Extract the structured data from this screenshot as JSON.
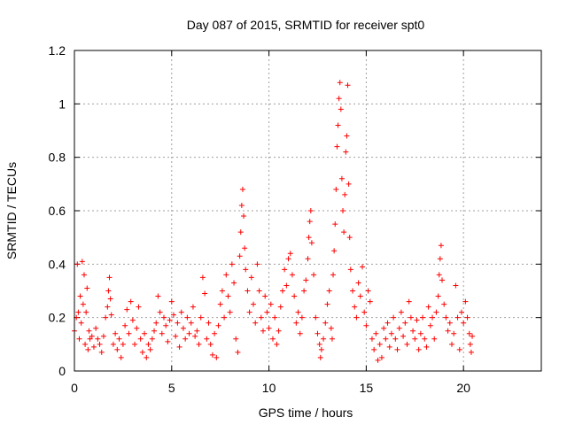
{
  "chart_data": {
    "type": "scatter",
    "title": "Day 087 of 2015, SRMTID for receiver spt0",
    "xlabel": "GPS time / hours",
    "ylabel": "SRMTID / TECUs",
    "xlim": [
      0,
      24
    ],
    "ylim": [
      0,
      1.2
    ],
    "xticks": [
      0,
      5,
      10,
      15,
      20
    ],
    "xtick_labels": [
      "0",
      "5",
      "10",
      "15",
      "20"
    ],
    "yticks": [
      0,
      0.2,
      0.4,
      0.6,
      0.8,
      1.0,
      1.2
    ],
    "ytick_labels": [
      "0",
      "0.2",
      "0.4",
      "0.6",
      "0.8",
      "1",
      "1.2"
    ],
    "grid": true,
    "marker": "+",
    "color": "#ff0000",
    "series": [
      {
        "name": "spt0",
        "points": [
          [
            0.0,
            0.15
          ],
          [
            0.1,
            0.2
          ],
          [
            0.15,
            0.4
          ],
          [
            0.2,
            0.22
          ],
          [
            0.25,
            0.12
          ],
          [
            0.3,
            0.28
          ],
          [
            0.35,
            0.18
          ],
          [
            0.4,
            0.41
          ],
          [
            0.45,
            0.25
          ],
          [
            0.5,
            0.36
          ],
          [
            0.55,
            0.1
          ],
          [
            0.6,
            0.22
          ],
          [
            0.65,
            0.31
          ],
          [
            0.7,
            0.08
          ],
          [
            0.75,
            0.15
          ],
          [
            0.8,
            0.12
          ],
          [
            0.9,
            0.13
          ],
          [
            1.0,
            0.09
          ],
          [
            1.1,
            0.16
          ],
          [
            1.2,
            0.12
          ],
          [
            1.3,
            0.1
          ],
          [
            1.4,
            0.07
          ],
          [
            1.5,
            0.13
          ],
          [
            1.6,
            0.2
          ],
          [
            1.7,
            0.24
          ],
          [
            1.75,
            0.3
          ],
          [
            1.8,
            0.35
          ],
          [
            1.85,
            0.27
          ],
          [
            1.9,
            0.21
          ],
          [
            2.0,
            0.1
          ],
          [
            2.1,
            0.14
          ],
          [
            2.2,
            0.08
          ],
          [
            2.3,
            0.12
          ],
          [
            2.4,
            0.05
          ],
          [
            2.5,
            0.1
          ],
          [
            2.6,
            0.17
          ],
          [
            2.7,
            0.23
          ],
          [
            2.8,
            0.14
          ],
          [
            2.9,
            0.26
          ],
          [
            3.0,
            0.19
          ],
          [
            3.1,
            0.1
          ],
          [
            3.2,
            0.16
          ],
          [
            3.3,
            0.24
          ],
          [
            3.4,
            0.12
          ],
          [
            3.5,
            0.07
          ],
          [
            3.6,
            0.14
          ],
          [
            3.7,
            0.05
          ],
          [
            3.8,
            0.1
          ],
          [
            3.9,
            0.08
          ],
          [
            4.0,
            0.12
          ],
          [
            4.1,
            0.15
          ],
          [
            4.2,
            0.18
          ],
          [
            4.3,
            0.28
          ],
          [
            4.4,
            0.22
          ],
          [
            4.5,
            0.14
          ],
          [
            4.6,
            0.2
          ],
          [
            4.7,
            0.17
          ],
          [
            4.8,
            0.11
          ],
          [
            4.9,
            0.19
          ],
          [
            5.0,
            0.26
          ],
          [
            5.1,
            0.21
          ],
          [
            5.2,
            0.13
          ],
          [
            5.3,
            0.18
          ],
          [
            5.4,
            0.09
          ],
          [
            5.5,
            0.22
          ],
          [
            5.6,
            0.16
          ],
          [
            5.7,
            0.12
          ],
          [
            5.8,
            0.2
          ],
          [
            5.9,
            0.14
          ],
          [
            6.0,
            0.18
          ],
          [
            6.1,
            0.24
          ],
          [
            6.2,
            0.13
          ],
          [
            6.3,
            0.15
          ],
          [
            6.4,
            0.1
          ],
          [
            6.5,
            0.2
          ],
          [
            6.6,
            0.35
          ],
          [
            6.7,
            0.29
          ],
          [
            6.8,
            0.12
          ],
          [
            6.9,
            0.18
          ],
          [
            7.0,
            0.1
          ],
          [
            7.1,
            0.06
          ],
          [
            7.2,
            0.14
          ],
          [
            7.3,
            0.05
          ],
          [
            7.4,
            0.17
          ],
          [
            7.5,
            0.25
          ],
          [
            7.6,
            0.3
          ],
          [
            7.7,
            0.2
          ],
          [
            7.8,
            0.36
          ],
          [
            7.9,
            0.28
          ],
          [
            8.0,
            0.22
          ],
          [
            8.1,
            0.4
          ],
          [
            8.2,
            0.33
          ],
          [
            8.3,
            0.12
          ],
          [
            8.4,
            0.07
          ],
          [
            8.5,
            0.43
          ],
          [
            8.55,
            0.52
          ],
          [
            8.6,
            0.62
          ],
          [
            8.65,
            0.68
          ],
          [
            8.7,
            0.58
          ],
          [
            8.75,
            0.46
          ],
          [
            8.8,
            0.38
          ],
          [
            8.9,
            0.3
          ],
          [
            9.0,
            0.22
          ],
          [
            9.1,
            0.35
          ],
          [
            9.2,
            0.25
          ],
          [
            9.3,
            0.18
          ],
          [
            9.4,
            0.4
          ],
          [
            9.5,
            0.3
          ],
          [
            9.6,
            0.2
          ],
          [
            9.7,
            0.15
          ],
          [
            9.8,
            0.28
          ],
          [
            9.9,
            0.22
          ],
          [
            10.0,
            0.16
          ],
          [
            10.1,
            0.25
          ],
          [
            10.2,
            0.12
          ],
          [
            10.3,
            0.2
          ],
          [
            10.4,
            0.1
          ],
          [
            10.5,
            0.15
          ],
          [
            10.6,
            0.24
          ],
          [
            10.7,
            0.3
          ],
          [
            10.8,
            0.38
          ],
          [
            10.9,
            0.32
          ],
          [
            11.0,
            0.42
          ],
          [
            11.1,
            0.44
          ],
          [
            11.2,
            0.36
          ],
          [
            11.3,
            0.28
          ],
          [
            11.4,
            0.18
          ],
          [
            11.5,
            0.22
          ],
          [
            11.6,
            0.14
          ],
          [
            11.7,
            0.2
          ],
          [
            11.8,
            0.3
          ],
          [
            11.9,
            0.34
          ],
          [
            12.0,
            0.42
          ],
          [
            12.05,
            0.5
          ],
          [
            12.1,
            0.56
          ],
          [
            12.15,
            0.6
          ],
          [
            12.2,
            0.48
          ],
          [
            12.3,
            0.36
          ],
          [
            12.4,
            0.2
          ],
          [
            12.5,
            0.14
          ],
          [
            12.6,
            0.1
          ],
          [
            12.65,
            0.05
          ],
          [
            12.7,
            0.08
          ],
          [
            12.8,
            0.12
          ],
          [
            12.9,
            0.18
          ],
          [
            13.0,
            0.25
          ],
          [
            13.1,
            0.3
          ],
          [
            13.2,
            0.16
          ],
          [
            13.25,
            0.12
          ],
          [
            13.3,
            0.36
          ],
          [
            13.35,
            0.45
          ],
          [
            13.4,
            0.55
          ],
          [
            13.45,
            0.68
          ],
          [
            13.5,
            0.84
          ],
          [
            13.55,
            0.92
          ],
          [
            13.6,
            1.02
          ],
          [
            13.65,
            1.08
          ],
          [
            13.7,
            0.98
          ],
          [
            13.75,
            0.72
          ],
          [
            13.8,
            0.6
          ],
          [
            13.85,
            0.52
          ],
          [
            13.9,
            0.66
          ],
          [
            13.95,
            0.82
          ],
          [
            14.0,
            0.88
          ],
          [
            14.05,
            1.07
          ],
          [
            14.1,
            0.7
          ],
          [
            14.15,
            0.5
          ],
          [
            14.2,
            0.38
          ],
          [
            14.3,
            0.3
          ],
          [
            14.4,
            0.24
          ],
          [
            14.5,
            0.2
          ],
          [
            14.6,
            0.33
          ],
          [
            14.7,
            0.28
          ],
          [
            14.8,
            0.39
          ],
          [
            14.9,
            0.22
          ],
          [
            15.0,
            0.17
          ],
          [
            15.1,
            0.3
          ],
          [
            15.2,
            0.26
          ],
          [
            15.3,
            0.12
          ],
          [
            15.4,
            0.08
          ],
          [
            15.5,
            0.14
          ],
          [
            15.6,
            0.04
          ],
          [
            15.7,
            0.1
          ],
          [
            15.8,
            0.05
          ],
          [
            15.9,
            0.16
          ],
          [
            16.0,
            0.12
          ],
          [
            16.1,
            0.18
          ],
          [
            16.2,
            0.09
          ],
          [
            16.3,
            0.14
          ],
          [
            16.4,
            0.2
          ],
          [
            16.5,
            0.12
          ],
          [
            16.6,
            0.08
          ],
          [
            16.7,
            0.16
          ],
          [
            16.8,
            0.22
          ],
          [
            16.9,
            0.13
          ],
          [
            17.0,
            0.18
          ],
          [
            17.1,
            0.1
          ],
          [
            17.2,
            0.26
          ],
          [
            17.3,
            0.2
          ],
          [
            17.4,
            0.15
          ],
          [
            17.5,
            0.12
          ],
          [
            17.6,
            0.19
          ],
          [
            17.7,
            0.08
          ],
          [
            17.8,
            0.14
          ],
          [
            17.9,
            0.2
          ],
          [
            18.0,
            0.12
          ],
          [
            18.1,
            0.09
          ],
          [
            18.2,
            0.24
          ],
          [
            18.3,
            0.17
          ],
          [
            18.4,
            0.2
          ],
          [
            18.5,
            0.12
          ],
          [
            18.6,
            0.22
          ],
          [
            18.7,
            0.28
          ],
          [
            18.75,
            0.36
          ],
          [
            18.8,
            0.42
          ],
          [
            18.85,
            0.47
          ],
          [
            18.9,
            0.34
          ],
          [
            19.0,
            0.25
          ],
          [
            19.1,
            0.2
          ],
          [
            19.2,
            0.15
          ],
          [
            19.3,
            0.18
          ],
          [
            19.4,
            0.1
          ],
          [
            19.5,
            0.14
          ],
          [
            19.6,
            0.32
          ],
          [
            19.7,
            0.2
          ],
          [
            19.8,
            0.08
          ],
          [
            19.9,
            0.22
          ],
          [
            20.0,
            0.18
          ],
          [
            20.1,
            0.26
          ],
          [
            20.2,
            0.2
          ],
          [
            20.3,
            0.14
          ],
          [
            20.35,
            0.1
          ],
          [
            20.4,
            0.07
          ],
          [
            20.45,
            0.13
          ]
        ]
      }
    ]
  }
}
